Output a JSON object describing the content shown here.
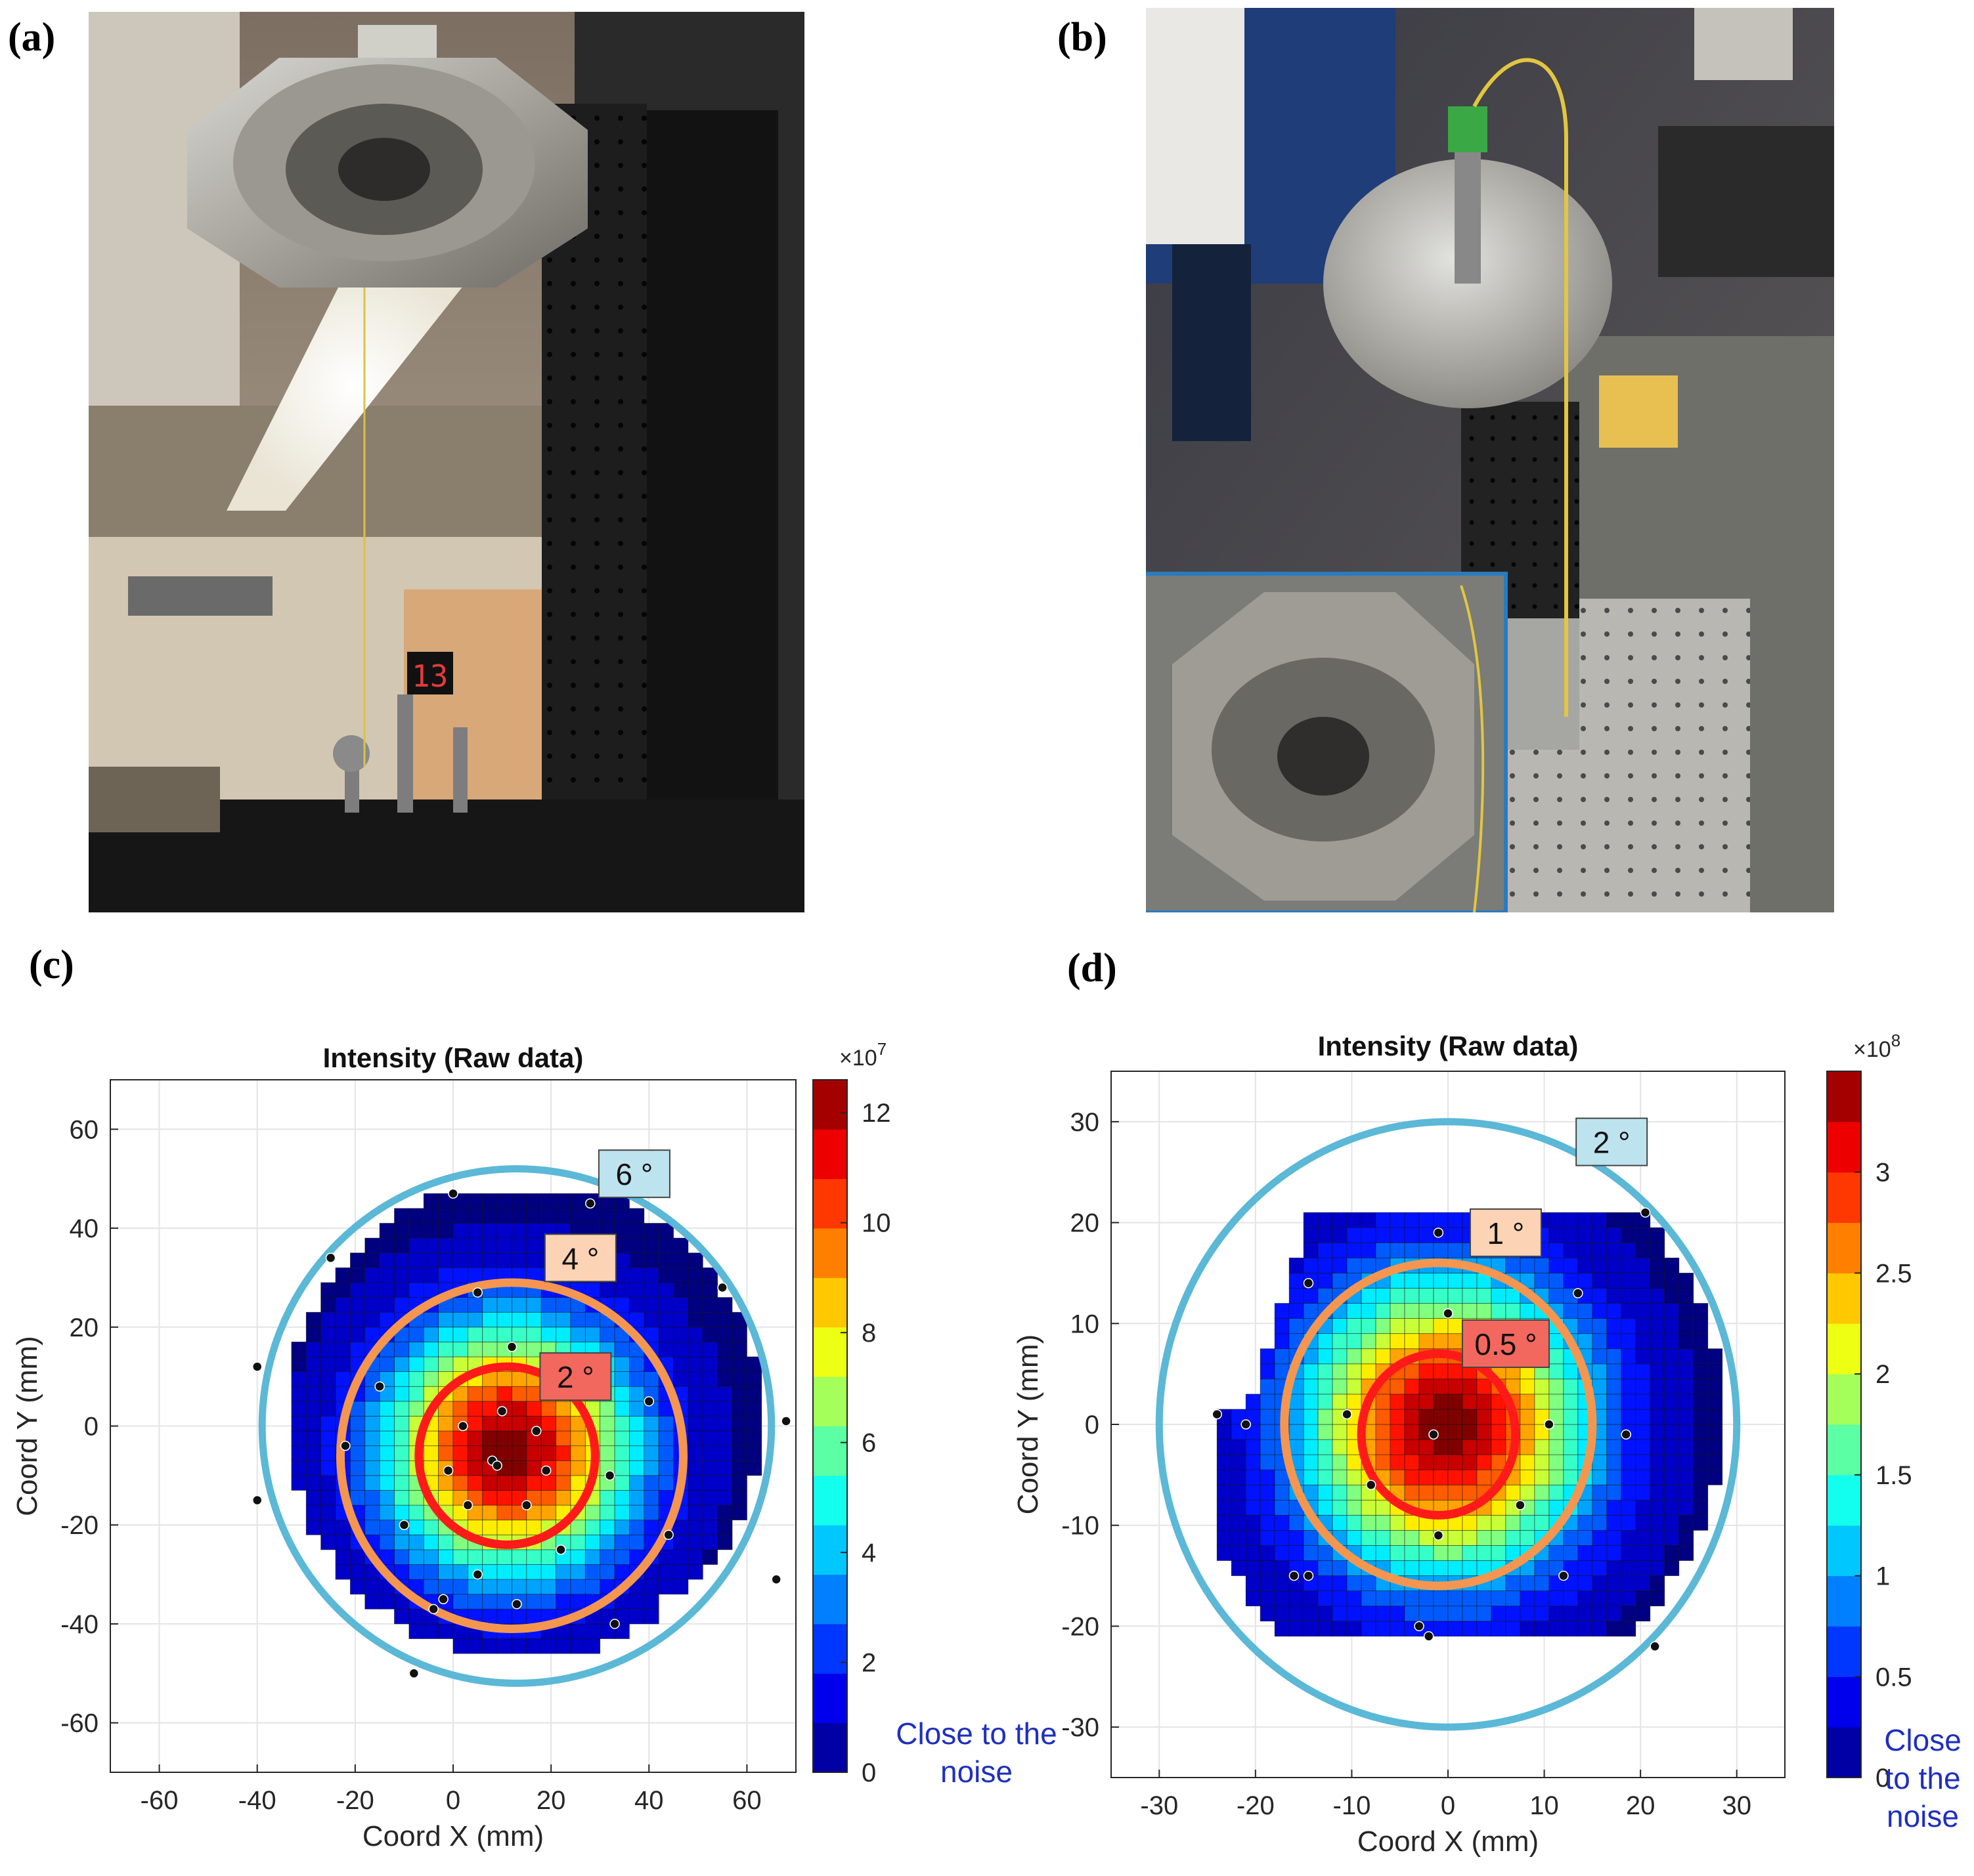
{
  "panels": {
    "a": {
      "label": "(a)"
    },
    "b": {
      "label": "(b)"
    },
    "c": {
      "label": "(c)"
    },
    "d": {
      "label": "(d)"
    }
  },
  "colors": {
    "ring_large": "#5bb8d6",
    "ring_mid": "#f4964f",
    "ring_small": "#ff1a1a",
    "note_text": "#1f2fbf",
    "inset_border": "#2a7bbd"
  },
  "photo_labels": {
    "gauge_digits": "13"
  },
  "chart_data": [
    {
      "type": "heatmap",
      "title": "Intensity (Raw data)",
      "xlabel": "Coord X (mm)",
      "ylabel": "Coord Y (mm)",
      "xlim": [
        -70,
        70
      ],
      "ylim": [
        -70,
        70
      ],
      "xticks": [
        -60,
        -40,
        -20,
        0,
        20,
        40,
        60
      ],
      "yticks": [
        60,
        40,
        20,
        0,
        -20,
        -40,
        -60
      ],
      "grid": true,
      "colorbar": {
        "exponent_label": "×10",
        "exponent_power": "7",
        "ticks": [
          0,
          2,
          4,
          6,
          8,
          10,
          12
        ],
        "range": [
          0,
          12.6
        ]
      },
      "peak": {
        "x": 10,
        "y": -6
      },
      "rings": [
        {
          "label": "6 °",
          "cx": 13,
          "cy": 0,
          "r": 52,
          "color": "#5bb8d6"
        },
        {
          "label": "4 °",
          "cx": 12,
          "cy": -6,
          "r": 35,
          "color": "#f4964f"
        },
        {
          "label": "2 °",
          "cx": 11,
          "cy": -6,
          "r": 18,
          "color": "#ff1a1a"
        }
      ],
      "ring_label_positions": [
        {
          "x": 37,
          "y": 51,
          "fill": "#bde3ef"
        },
        {
          "x": 26,
          "y": 34,
          "fill": "#fcd3b4"
        },
        {
          "x": 25,
          "y": 10,
          "fill": "#f2685e"
        }
      ],
      "measurement_points": [
        [
          0,
          47
        ],
        [
          28,
          45
        ],
        [
          -25,
          34
        ],
        [
          55,
          28
        ],
        [
          5,
          27
        ],
        [
          -40,
          12
        ],
        [
          12,
          16
        ],
        [
          -15,
          8
        ],
        [
          40,
          5
        ],
        [
          10,
          3
        ],
        [
          2,
          0
        ],
        [
          17,
          -1
        ],
        [
          -22,
          -4
        ],
        [
          8,
          -7
        ],
        [
          9,
          -8
        ],
        [
          19,
          -9
        ],
        [
          -1,
          -9
        ],
        [
          32,
          -10
        ],
        [
          -40,
          -15
        ],
        [
          15,
          -16
        ],
        [
          3,
          -16
        ],
        [
          -10,
          -20
        ],
        [
          44,
          -22
        ],
        [
          22,
          -25
        ],
        [
          5,
          -30
        ],
        [
          -2,
          -35
        ],
        [
          -4,
          -37
        ],
        [
          13,
          -36
        ],
        [
          66,
          -31
        ],
        [
          33,
          -40
        ],
        [
          -8,
          -50
        ],
        [
          68,
          1
        ]
      ],
      "annotation": "Close to the noise"
    },
    {
      "type": "heatmap",
      "title": "Intensity (Raw data)",
      "xlabel": "Coord X (mm)",
      "ylabel": "Coord Y (mm)",
      "xlim": [
        -35,
        35
      ],
      "ylim": [
        -35,
        35
      ],
      "xticks": [
        -30,
        -20,
        -10,
        0,
        10,
        20,
        30
      ],
      "yticks": [
        30,
        20,
        10,
        0,
        -10,
        -20,
        -30
      ],
      "grid": true,
      "colorbar": {
        "exponent_label": "×10",
        "exponent_power": "8",
        "ticks": [
          0,
          0.5,
          1,
          1.5,
          2,
          2.5,
          3
        ],
        "range": [
          0,
          3.5
        ]
      },
      "peak": {
        "x": -1,
        "y": -1
      },
      "rings": [
        {
          "label": "2 °",
          "cx": 0,
          "cy": 0,
          "r": 30,
          "color": "#5bb8d6"
        },
        {
          "label": "1 °",
          "cx": -1,
          "cy": 0,
          "r": 16,
          "color": "#f4964f"
        },
        {
          "label": "0.5 °",
          "cx": -1,
          "cy": -1,
          "r": 8,
          "color": "#ff1a1a"
        }
      ],
      "ring_label_positions": [
        {
          "x": 17,
          "y": 28,
          "fill": "#bde3ef"
        },
        {
          "x": 6,
          "y": 19,
          "fill": "#fcd3b4"
        },
        {
          "x": 6,
          "y": 8,
          "fill": "#f2685e"
        }
      ],
      "measurement_points": [
        [
          -1,
          19
        ],
        [
          20.5,
          21
        ],
        [
          -14.5,
          14
        ],
        [
          13.5,
          13
        ],
        [
          0,
          11
        ],
        [
          -24,
          1
        ],
        [
          -21,
          0
        ],
        [
          -10.5,
          1
        ],
        [
          10.5,
          0
        ],
        [
          18.5,
          -1
        ],
        [
          -1.5,
          -1
        ],
        [
          -8,
          -6
        ],
        [
          7.5,
          -8
        ],
        [
          -1,
          -11
        ],
        [
          -16,
          -15
        ],
        [
          -14.5,
          -15
        ],
        [
          12,
          -15
        ],
        [
          -3,
          -20
        ],
        [
          -2,
          -21
        ],
        [
          21.5,
          -22
        ]
      ],
      "annotation": "Close to the noise"
    }
  ]
}
